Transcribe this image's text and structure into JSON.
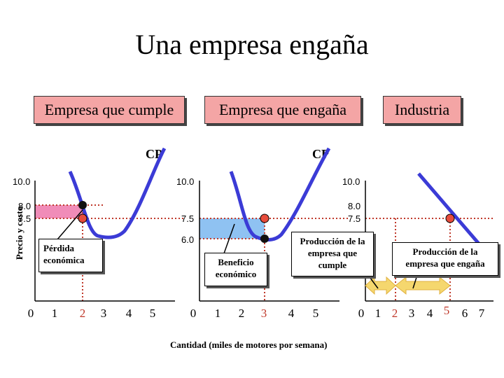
{
  "slide": {
    "title": "Una empresa engaña",
    "headers": [
      "Empresa que cumple",
      "Empresa que engaña",
      "Industria"
    ],
    "cp_labels": [
      "CP",
      "CP"
    ],
    "y_axis_label": "Precio y costo",
    "x_axis_label": "Cantidad (miles de motores por semana)",
    "notes": {
      "loss": "Pérdida económica",
      "profit": "Beneficio económico",
      "compliant_output": "Producción de la empresa que cumple",
      "cheating_output": "Producción de la empresa que engaña"
    }
  },
  "colors": {
    "curve": "#3b3bd6",
    "dotted": "#c0392b",
    "loss_fill": "#f08cb8",
    "profit_fill": "#8fc2f2",
    "header_fill": "#f4a5a5",
    "arrow_fill": "#f5d76e"
  },
  "chart_data": [
    {
      "type": "line",
      "panel": "Empresa que cumple",
      "y_ticks": [
        "10.0",
        "8.0",
        "7.5"
      ],
      "x_ticks": [
        "0",
        "1",
        "2",
        "3",
        "4",
        "5"
      ],
      "curve": "CP",
      "point_price": 8.0,
      "point_cost": 7.5,
      "quantity": 2,
      "area": "loss"
    },
    {
      "type": "line",
      "panel": "Empresa que engaña",
      "y_ticks": [
        "10.0",
        "7.5",
        "6.0"
      ],
      "x_ticks": [
        "0",
        "1",
        "2",
        "3",
        "4",
        "5"
      ],
      "curve": "CP",
      "point_price": 7.5,
      "point_cost": 6.0,
      "quantity": 3,
      "area": "profit"
    },
    {
      "type": "line",
      "panel": "Industria",
      "y_ticks": [
        "10.0",
        "8.0",
        "7.5"
      ],
      "x_ticks": [
        "0",
        "1",
        "2",
        "3",
        "4",
        "5",
        "6",
        "7"
      ],
      "point_price": 7.5,
      "quantity": 5
    }
  ]
}
